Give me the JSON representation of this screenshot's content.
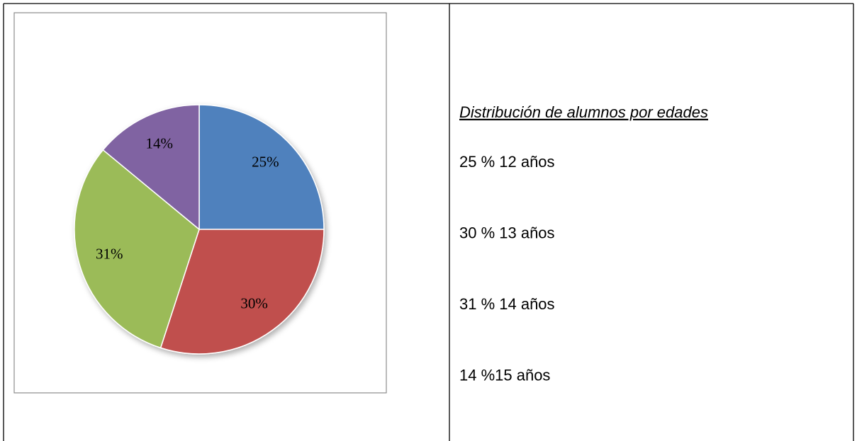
{
  "chart_data": {
    "type": "pie",
    "values": [
      25,
      30,
      31,
      14
    ],
    "value_labels": [
      "25%",
      "30%",
      "31%",
      "14%"
    ],
    "colors": [
      "#4f81bd",
      "#c0504d",
      "#9bbb59",
      "#8064a2"
    ]
  },
  "text": {
    "title": "Distribución de alumnos por edades",
    "lines": [
      "25 % 12 años",
      "30 % 13 años",
      "31 % 14 años",
      "14 %15 años"
    ]
  }
}
